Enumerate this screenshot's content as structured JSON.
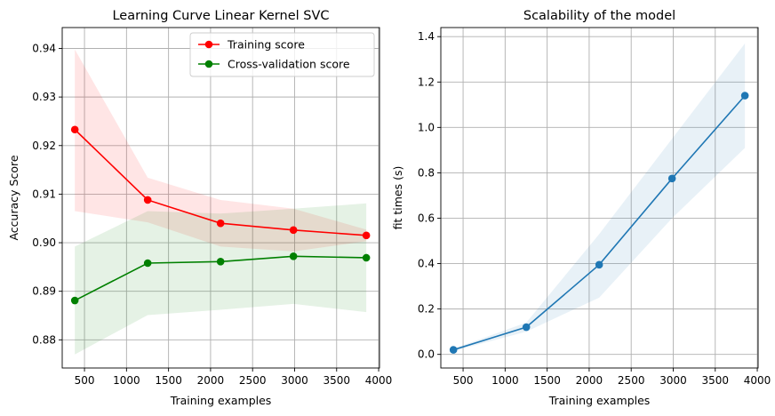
{
  "chart_data": [
    {
      "type": "line",
      "title": "Learning Curve Linear Kernel SVC",
      "xlabel": "Training examples",
      "ylabel": "Accuracy Score",
      "xlim": [
        235,
        4010
      ],
      "ylim": [
        0.8742,
        0.9443
      ],
      "xticks": [
        500,
        1000,
        1500,
        2000,
        2500,
        3000,
        3500,
        4000
      ],
      "yticks": [
        0.88,
        0.89,
        0.9,
        0.91,
        0.92,
        0.93,
        0.94
      ],
      "ytick_labels": [
        "0.88",
        "0.89",
        "0.90",
        "0.91",
        "0.92",
        "0.93",
        "0.94"
      ],
      "grid": true,
      "legend_position": "top-right",
      "x": [
        385,
        1252,
        2119,
        2986,
        3853
      ],
      "series": [
        {
          "name": "Training score",
          "color": "#ff0000",
          "band_color": "#ff0000",
          "values": [
            0.9233,
            0.9088,
            0.904,
            0.9026,
            0.9015
          ],
          "lower": [
            0.9065,
            0.9042,
            0.8992,
            0.8982,
            0.9003
          ],
          "upper": [
            0.9398,
            0.9134,
            0.9088,
            0.907,
            0.9027
          ]
        },
        {
          "name": "Cross-validation score",
          "color": "#008000",
          "band_color": "#008000",
          "values": [
            0.8881,
            0.8958,
            0.8961,
            0.8972,
            0.8969
          ],
          "lower": [
            0.877,
            0.8851,
            0.8862,
            0.8874,
            0.8857
          ],
          "upper": [
            0.8992,
            0.9065,
            0.906,
            0.907,
            0.9081
          ]
        }
      ]
    },
    {
      "type": "line",
      "title": "Scalability of the model",
      "xlabel": "Training examples",
      "ylabel": "fit times (s)",
      "xlim": [
        235,
        4010
      ],
      "ylim": [
        -0.06,
        1.44
      ],
      "xticks": [
        500,
        1000,
        1500,
        2000,
        2500,
        3000,
        3500,
        4000
      ],
      "yticks": [
        0.0,
        0.2,
        0.4,
        0.6,
        0.8,
        1.0,
        1.2,
        1.4
      ],
      "ytick_labels": [
        "0.0",
        "0.2",
        "0.4",
        "0.6",
        "0.8",
        "1.0",
        "1.2",
        "1.4"
      ],
      "grid": true,
      "x": [
        385,
        1252,
        2119,
        2986,
        3853
      ],
      "series": [
        {
          "color": "#1f77b4",
          "band_color": "#1f77b4",
          "values": [
            0.02,
            0.12,
            0.395,
            0.775,
            1.14
          ],
          "lower": [
            0.015,
            0.1,
            0.25,
            0.6,
            0.91
          ],
          "upper": [
            0.025,
            0.14,
            0.53,
            0.95,
            1.37
          ]
        }
      ]
    }
  ]
}
